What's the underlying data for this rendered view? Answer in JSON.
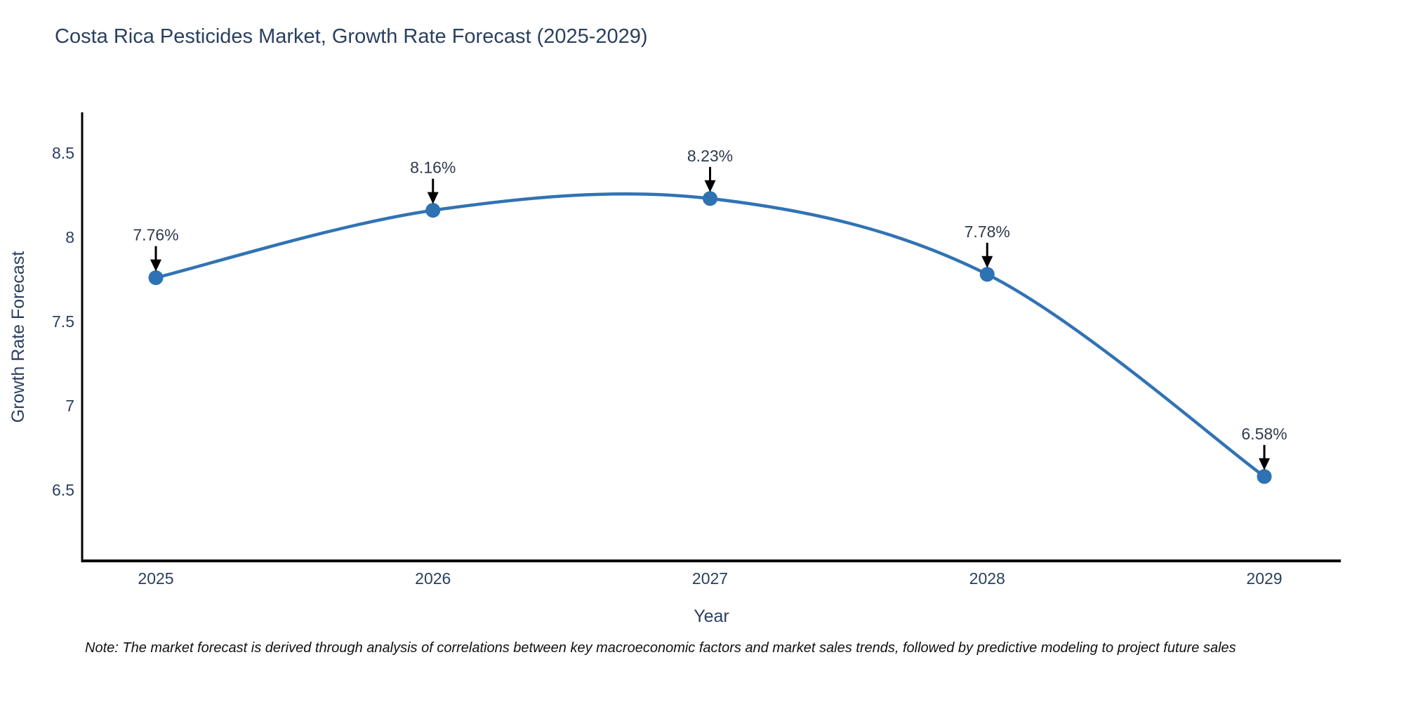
{
  "title": "Costa Rica Pesticides Market, Growth Rate Forecast (2025-2029)",
  "note": "Note: The market forecast is derived through analysis of correlations between key macroeconomic factors and market sales trends, followed by predictive modeling to project future sales",
  "chart_data": {
    "type": "line",
    "title": "Costa Rica Pesticides Market, Growth Rate Forecast (2025-2029)",
    "categories": [
      "2025",
      "2026",
      "2027",
      "2028",
      "2029"
    ],
    "values": [
      7.76,
      8.16,
      8.23,
      7.78,
      6.58
    ],
    "point_labels": [
      "7.76%",
      "8.16%",
      "8.23%",
      "7.78%",
      "6.58%"
    ],
    "xlabel": "Year",
    "ylabel": "Growth Rate Forecast",
    "yticks": [
      8.5,
      8,
      7.5,
      7,
      6.5
    ],
    "ytick_labels": [
      "8.5",
      "8",
      "7.5",
      "7",
      "6.5"
    ],
    "ylim": [
      6.07,
      8.74
    ],
    "grid": false,
    "legend": "none",
    "line_shape": "spline",
    "line_color": "#3173b4",
    "marker_color": "#2d72b2",
    "axis_color": "#000000",
    "tick_color": "#2a3f5f",
    "annotation_color": "#2e3a4e",
    "arrow_color": "#000000"
  }
}
